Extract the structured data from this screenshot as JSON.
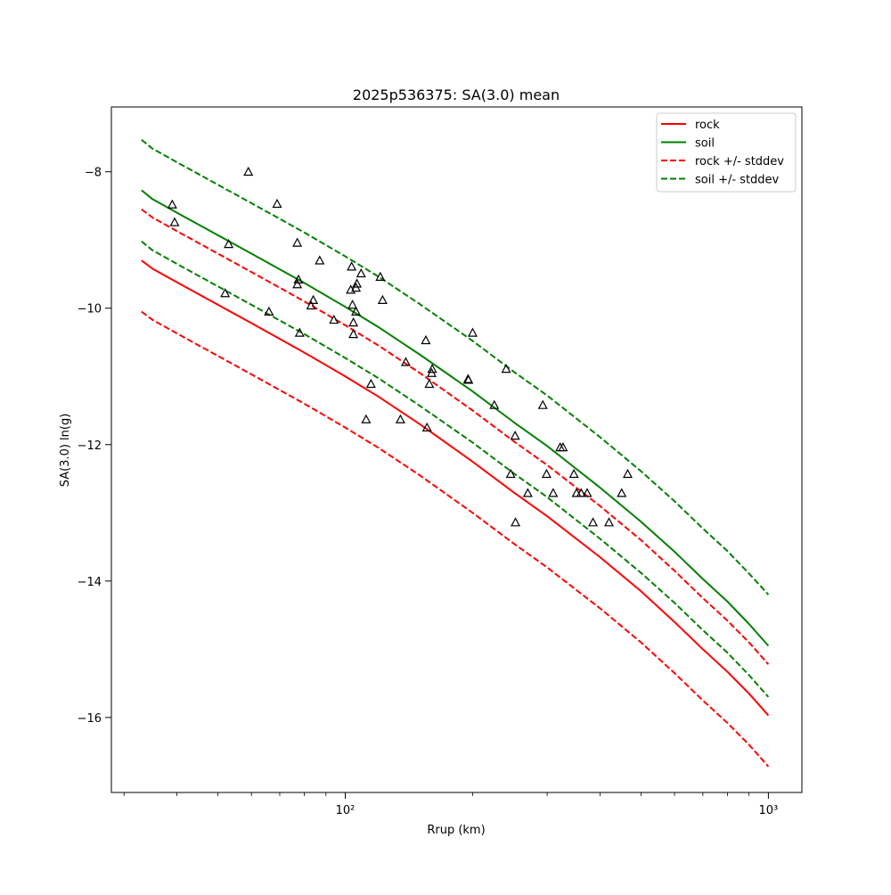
{
  "chart_data": {
    "type": "line",
    "title": "2025p536375: SA(3.0) mean",
    "xlabel": "Rrup (km)",
    "ylabel": "SA(3.0) ln(g)",
    "x_scale": "log",
    "xlim": [
      28,
      1200
    ],
    "ylim": [
      -17.1,
      -7.05
    ],
    "x_major_ticks": [
      {
        "value": 100,
        "label": "10²"
      },
      {
        "value": 1000,
        "label": "10³"
      }
    ],
    "x_minor_ticks": [
      30,
      40,
      50,
      60,
      70,
      80,
      90,
      200,
      300,
      400,
      500,
      600,
      700,
      800,
      900
    ],
    "y_ticks": [
      {
        "value": -8,
        "label": "−8"
      },
      {
        "value": -10,
        "label": "−10"
      },
      {
        "value": -12,
        "label": "−12"
      },
      {
        "value": -14,
        "label": "−14"
      },
      {
        "value": -16,
        "label": "−16"
      }
    ],
    "grid": false,
    "legend_position": "top-right",
    "series": [
      {
        "name": "rock",
        "color": "#ff0000",
        "dash": "solid",
        "x": [
          33,
          35,
          40,
          50,
          60,
          70,
          80,
          100,
          120,
          150,
          200,
          250,
          300,
          400,
          500,
          600,
          700,
          800,
          900,
          1000
        ],
        "y": [
          -9.3,
          -9.42,
          -9.62,
          -9.95,
          -10.22,
          -10.45,
          -10.65,
          -11.0,
          -11.3,
          -11.7,
          -12.25,
          -12.7,
          -13.05,
          -13.65,
          -14.15,
          -14.6,
          -15.0,
          -15.33,
          -15.65,
          -15.97
        ]
      },
      {
        "name": "soil",
        "color": "#008000",
        "dash": "solid",
        "x": [
          33,
          35,
          40,
          50,
          60,
          70,
          80,
          100,
          120,
          150,
          200,
          250,
          300,
          400,
          500,
          600,
          700,
          800,
          900,
          1000
        ],
        "y": [
          -8.27,
          -8.4,
          -8.6,
          -8.93,
          -9.2,
          -9.43,
          -9.63,
          -9.98,
          -10.28,
          -10.68,
          -11.22,
          -11.67,
          -12.02,
          -12.63,
          -13.13,
          -13.57,
          -13.97,
          -14.3,
          -14.63,
          -14.95
        ]
      },
      {
        "name": "rock +/- stddev",
        "color": "#ff0000",
        "dash": "dashed",
        "x": [
          33,
          35,
          40,
          50,
          60,
          70,
          80,
          100,
          120,
          150,
          200,
          250,
          300,
          400,
          500,
          600,
          700,
          800,
          900,
          1000
        ],
        "y": [
          -8.55,
          -8.67,
          -8.87,
          -9.2,
          -9.47,
          -9.7,
          -9.9,
          -10.25,
          -10.55,
          -10.95,
          -11.5,
          -11.95,
          -12.3,
          -12.9,
          -13.4,
          -13.85,
          -14.25,
          -14.58,
          -14.9,
          -15.22
        ]
      },
      {
        "name": "rock +/- stddev (lower)",
        "color": "#ff0000",
        "dash": "dashed",
        "x": [
          33,
          35,
          40,
          50,
          60,
          70,
          80,
          100,
          120,
          150,
          200,
          250,
          300,
          400,
          500,
          600,
          700,
          800,
          900,
          1000
        ],
        "y": [
          -10.05,
          -10.17,
          -10.37,
          -10.7,
          -10.97,
          -11.2,
          -11.4,
          -11.75,
          -12.05,
          -12.45,
          -13.0,
          -13.45,
          -13.8,
          -14.4,
          -14.9,
          -15.35,
          -15.75,
          -16.08,
          -16.4,
          -16.72
        ]
      },
      {
        "name": "soil +/- stddev",
        "color": "#008000",
        "dash": "dashed",
        "x": [
          33,
          35,
          40,
          50,
          60,
          70,
          80,
          100,
          120,
          150,
          200,
          250,
          300,
          400,
          500,
          600,
          700,
          800,
          900,
          1000
        ],
        "y": [
          -7.53,
          -7.66,
          -7.86,
          -8.19,
          -8.46,
          -8.69,
          -8.89,
          -9.24,
          -9.54,
          -9.94,
          -10.48,
          -10.93,
          -11.28,
          -11.89,
          -12.39,
          -12.83,
          -13.23,
          -13.56,
          -13.89,
          -14.2
        ]
      },
      {
        "name": "soil +/- stddev (lower)",
        "color": "#008000",
        "dash": "dashed",
        "x": [
          33,
          35,
          40,
          50,
          60,
          70,
          80,
          100,
          120,
          150,
          200,
          250,
          300,
          400,
          500,
          600,
          700,
          800,
          900,
          1000
        ],
        "y": [
          -9.02,
          -9.15,
          -9.35,
          -9.68,
          -9.95,
          -10.18,
          -10.38,
          -10.73,
          -11.03,
          -11.43,
          -11.97,
          -12.42,
          -12.77,
          -13.38,
          -13.88,
          -14.32,
          -14.72,
          -15.05,
          -15.38,
          -15.7
        ]
      }
    ],
    "legend": [
      {
        "label": "rock",
        "color": "#ff0000",
        "dash": "solid"
      },
      {
        "label": "soil",
        "color": "#008000",
        "dash": "solid"
      },
      {
        "label": "rock +/- stddev",
        "color": "#ff0000",
        "dash": "dashed"
      },
      {
        "label": "soil +/- stddev",
        "color": "#008000",
        "dash": "dashed"
      }
    ],
    "observations": {
      "marker": "triangle",
      "color": "#000000",
      "points": [
        [
          39,
          -8.48
        ],
        [
          39.5,
          -8.74
        ],
        [
          52,
          -9.78
        ],
        [
          53,
          -9.06
        ],
        [
          59,
          -8.0
        ],
        [
          66,
          -10.05
        ],
        [
          69,
          -8.47
        ],
        [
          77,
          -9.04
        ],
        [
          77,
          -9.65
        ],
        [
          77.5,
          -9.58
        ],
        [
          78,
          -10.36
        ],
        [
          83,
          -9.96
        ],
        [
          84,
          -9.88
        ],
        [
          87,
          -9.3
        ],
        [
          94,
          -10.17
        ],
        [
          103,
          -9.73
        ],
        [
          103.5,
          -9.39
        ],
        [
          104,
          -9.95
        ],
        [
          104.5,
          -10.21
        ],
        [
          104.5,
          -10.38
        ],
        [
          106,
          -10.05
        ],
        [
          106,
          -9.7
        ],
        [
          106.5,
          -9.64
        ],
        [
          109,
          -9.49
        ],
        [
          112,
          -11.63
        ],
        [
          115,
          -11.11
        ],
        [
          121,
          -9.54
        ],
        [
          122.5,
          -9.88
        ],
        [
          135,
          -11.63
        ],
        [
          139,
          -10.79
        ],
        [
          155,
          -10.47
        ],
        [
          156,
          -11.75
        ],
        [
          158,
          -11.11
        ],
        [
          160,
          -10.95
        ],
        [
          160.5,
          -10.89
        ],
        [
          195,
          -11.04
        ],
        [
          195.5,
          -11.05
        ],
        [
          200,
          -10.36
        ],
        [
          225,
          -11.42
        ],
        [
          240,
          -10.89
        ],
        [
          246,
          -12.43
        ],
        [
          252,
          -11.87
        ],
        [
          252.5,
          -13.14
        ],
        [
          270,
          -12.71
        ],
        [
          293,
          -11.42
        ],
        [
          299,
          -12.43
        ],
        [
          310,
          -12.71
        ],
        [
          322,
          -12.04
        ],
        [
          327,
          -12.04
        ],
        [
          347,
          -12.43
        ],
        [
          352,
          -12.71
        ],
        [
          361,
          -12.71
        ],
        [
          373,
          -12.71
        ],
        [
          385,
          -13.14
        ],
        [
          420,
          -13.14
        ],
        [
          450,
          -12.71
        ],
        [
          465,
          -12.43
        ]
      ]
    }
  }
}
